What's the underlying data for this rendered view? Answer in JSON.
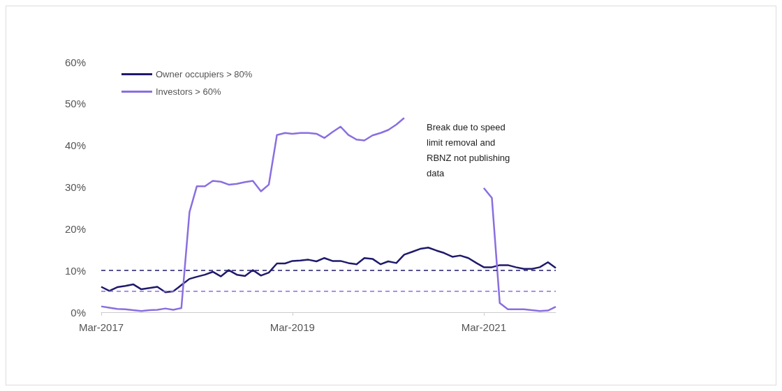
{
  "chart_data": {
    "type": "line",
    "x": [
      "2017-03",
      "2017-04",
      "2017-05",
      "2017-06",
      "2017-07",
      "2017-08",
      "2017-09",
      "2017-10",
      "2017-11",
      "2017-12",
      "2018-01",
      "2018-02",
      "2018-03",
      "2018-04",
      "2018-05",
      "2018-06",
      "2018-07",
      "2018-08",
      "2018-09",
      "2018-10",
      "2018-11",
      "2018-12",
      "2019-01",
      "2019-02",
      "2019-03",
      "2019-04",
      "2019-05",
      "2019-06",
      "2019-07",
      "2019-08",
      "2019-09",
      "2019-10",
      "2019-11",
      "2019-12",
      "2020-01",
      "2020-02",
      "2020-03",
      "2020-04",
      "2020-05",
      "2020-06",
      "2020-07",
      "2020-08",
      "2020-09",
      "2020-10",
      "2020-11",
      "2020-12",
      "2021-01",
      "2021-02",
      "2021-03",
      "2021-04",
      "2021-05",
      "2021-06",
      "2021-07",
      "2021-08",
      "2021-09",
      "2021-10",
      "2021-11",
      "2021-12"
    ],
    "series": [
      {
        "name": "Owner occupiers > 80%",
        "color": "#1f1a6b",
        "values": [
          6.1,
          5.1,
          6.0,
          6.3,
          6.7,
          5.5,
          5.8,
          6.1,
          4.8,
          5.0,
          6.5,
          8.0,
          8.5,
          9.0,
          9.7,
          8.6,
          10.1,
          9.0,
          8.7,
          10.1,
          8.8,
          9.5,
          11.7,
          11.7,
          12.3,
          12.4,
          12.6,
          12.2,
          13.0,
          12.3,
          12.3,
          11.8,
          11.5,
          13.0,
          12.8,
          11.5,
          12.2,
          11.8,
          13.8,
          14.5,
          15.2,
          15.5,
          14.8,
          14.2,
          13.3,
          13.6,
          13.0,
          11.8,
          10.8,
          10.8,
          11.3,
          11.3,
          10.8,
          10.4,
          10.4,
          10.8,
          12.0,
          10.6
        ]
      },
      {
        "name": "Investors > 60%",
        "color": "#8a6ee0",
        "values": [
          1.4,
          1.1,
          0.8,
          0.7,
          0.5,
          0.3,
          0.5,
          0.6,
          0.9,
          0.6,
          1.0,
          24.0,
          30.2,
          30.2,
          31.5,
          31.3,
          30.6,
          30.8,
          31.2,
          31.5,
          29.0,
          30.6,
          42.5,
          43.0,
          42.8,
          43.0,
          43.0,
          42.8,
          41.8,
          43.2,
          44.5,
          42.5,
          41.4,
          41.2,
          42.4,
          43.0,
          43.7,
          45.0,
          46.6,
          null,
          null,
          null,
          null,
          null,
          null,
          null,
          null,
          null,
          29.8,
          27.4,
          2.2,
          0.7,
          0.7,
          0.7,
          0.5,
          0.3,
          0.4,
          1.3
        ]
      }
    ],
    "xlim": [
      "2017-03",
      "2021-12"
    ],
    "xticks": [
      {
        "value": "2017-03",
        "label": "Mar-2017"
      },
      {
        "value": "2019-03",
        "label": "Mar-2019"
      },
      {
        "value": "2021-03",
        "label": "Mar-2021"
      }
    ],
    "ylim": [
      0,
      60
    ],
    "yticks": [
      {
        "value": 0,
        "label": "0%"
      },
      {
        "value": 10,
        "label": "10%"
      },
      {
        "value": 20,
        "label": "20%"
      },
      {
        "value": 30,
        "label": "30%"
      },
      {
        "value": 40,
        "label": "40%"
      },
      {
        "value": 50,
        "label": "50%"
      },
      {
        "value": 60,
        "label": "60%"
      }
    ],
    "ref_lines": [
      {
        "axis": "y",
        "value": 10,
        "color": "#1f1a6b",
        "line_style": "dashed"
      },
      {
        "axis": "y",
        "value": 5,
        "color": "#8a6ee0",
        "line_style": "dashed"
      }
    ],
    "annotations": [
      "Break due to speed\nlimit removal and\nRBNZ not publishing\ndata"
    ],
    "grid": false,
    "legend": "top left"
  }
}
